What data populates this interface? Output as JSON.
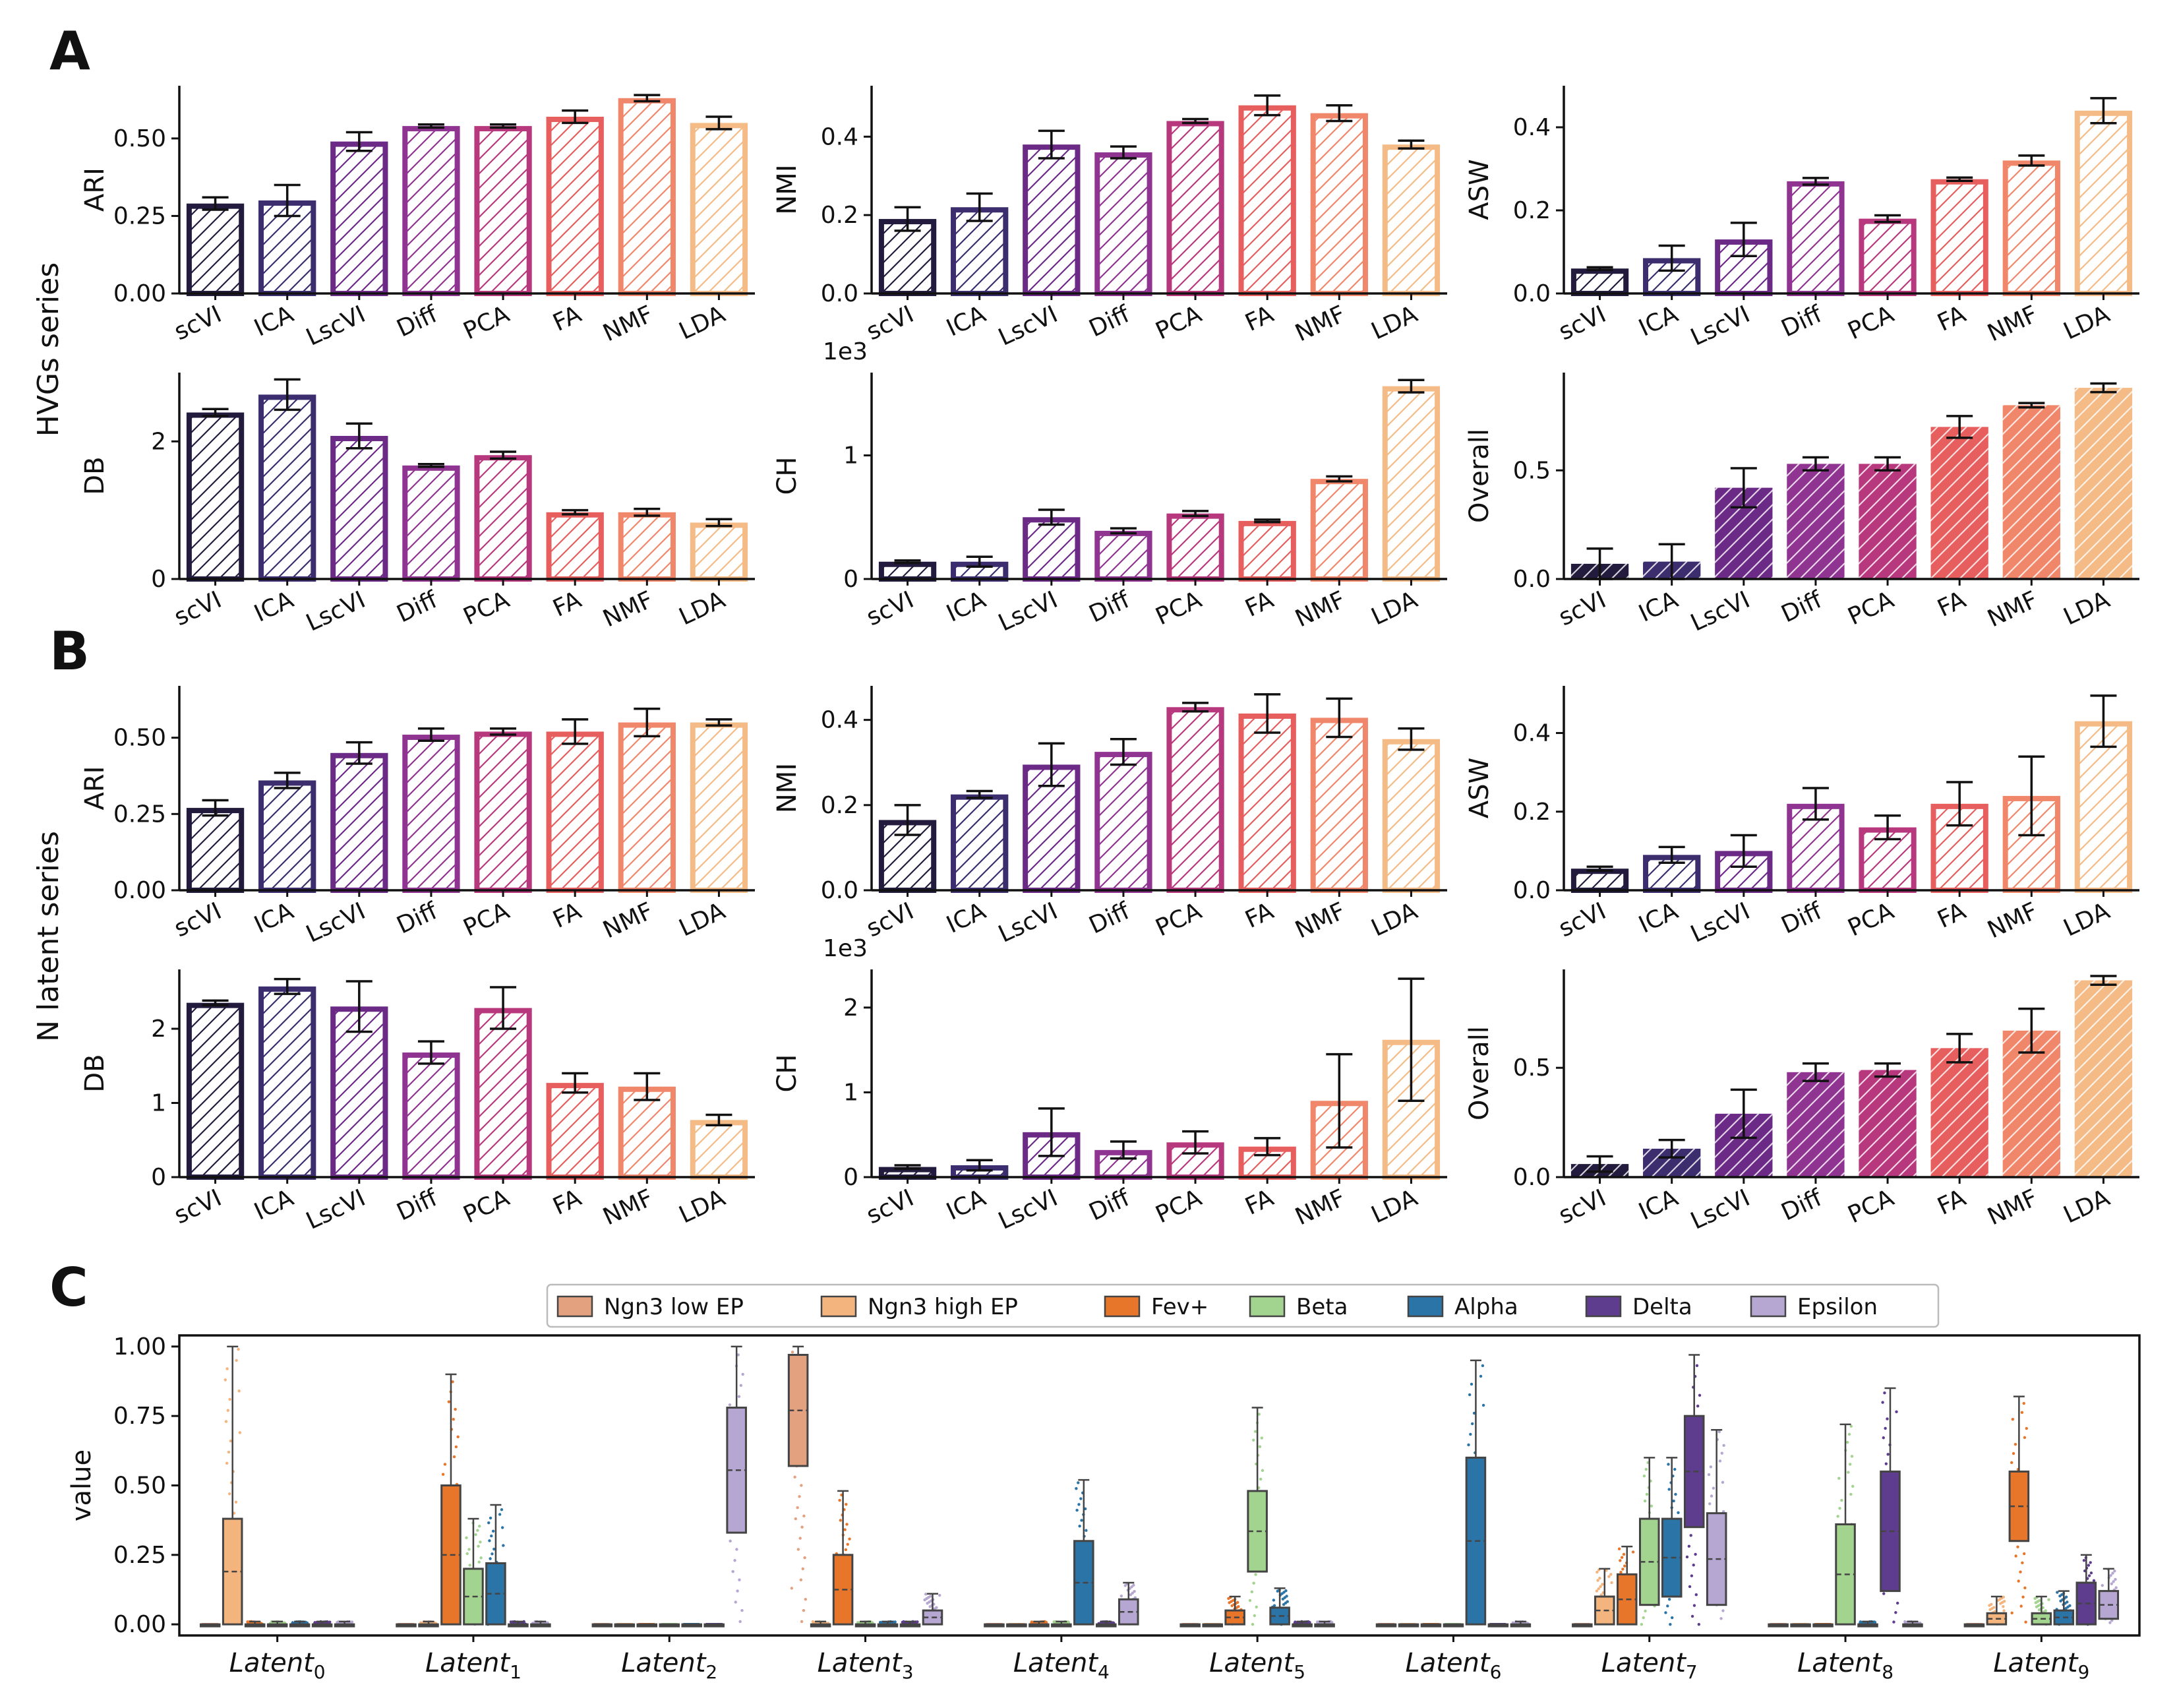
{
  "panels": {
    "A": "A",
    "B": "B",
    "C": "C"
  },
  "row_labels": {
    "A": "HVGs series",
    "B": "N latent series"
  },
  "methods": [
    "scVI",
    "ICA",
    "LscVI",
    "Diff",
    "PCA",
    "FA",
    "NMF",
    "LDA"
  ],
  "colors": [
    "#231b3d",
    "#3b2d6e",
    "#6c2a87",
    "#8f3491",
    "#b8387e",
    "#e75e5e",
    "#f0866a",
    "#f5bb86"
  ],
  "chart_data": [
    {
      "id": "A-ARI",
      "type": "bar",
      "title": "",
      "xlabel": "",
      "ylabel": "ARI",
      "categories": [
        "scVI",
        "ICA",
        "LscVI",
        "Diff",
        "PCA",
        "FA",
        "NMF",
        "LDA"
      ],
      "values": [
        0.29,
        0.3,
        0.49,
        0.54,
        0.54,
        0.57,
        0.63,
        0.55
      ],
      "errors": [
        0.02,
        0.05,
        0.03,
        0.005,
        0.005,
        0.02,
        0.01,
        0.02
      ],
      "ylim": [
        0,
        0.67
      ],
      "yticks": [
        "0.00",
        "0.25",
        "0.50"
      ],
      "ytick_values": [
        0,
        0.25,
        0.5
      ],
      "fill": "hatch"
    },
    {
      "id": "A-NMI",
      "type": "bar",
      "title": "",
      "xlabel": "",
      "ylabel": "NMI",
      "categories": [
        "scVI",
        "ICA",
        "LscVI",
        "Diff",
        "PCA",
        "FA",
        "NMF",
        "LDA"
      ],
      "values": [
        0.19,
        0.22,
        0.38,
        0.36,
        0.44,
        0.48,
        0.46,
        0.38
      ],
      "errors": [
        0.03,
        0.035,
        0.035,
        0.015,
        0.005,
        0.025,
        0.02,
        0.01
      ],
      "ylim": [
        0,
        0.53
      ],
      "yticks": [
        "0.0",
        "0.2",
        "0.4"
      ],
      "ytick_values": [
        0,
        0.2,
        0.4
      ],
      "fill": "hatch"
    },
    {
      "id": "A-ASW",
      "type": "bar",
      "title": "",
      "xlabel": "",
      "ylabel": "ASW",
      "categories": [
        "scVI",
        "ICA",
        "LscVI",
        "Diff",
        "PCA",
        "FA",
        "NMF",
        "LDA"
      ],
      "values": [
        0.06,
        0.085,
        0.13,
        0.27,
        0.18,
        0.275,
        0.32,
        0.44
      ],
      "errors": [
        0.003,
        0.03,
        0.04,
        0.008,
        0.008,
        0.004,
        0.012,
        0.03
      ],
      "ylim": [
        0,
        0.5
      ],
      "yticks": [
        "0.0",
        "0.2",
        "0.4"
      ],
      "ytick_values": [
        0,
        0.2,
        0.4
      ],
      "fill": "hatch"
    },
    {
      "id": "A-DB",
      "type": "bar",
      "title": "",
      "xlabel": "",
      "ylabel": "DB",
      "categories": [
        "scVI",
        "ICA",
        "LscVI",
        "Diff",
        "PCA",
        "FA",
        "NMF",
        "LDA"
      ],
      "values": [
        2.42,
        2.68,
        2.08,
        1.65,
        1.8,
        0.97,
        0.97,
        0.82
      ],
      "errors": [
        0.05,
        0.22,
        0.18,
        0.02,
        0.05,
        0.03,
        0.05,
        0.05
      ],
      "ylim": [
        0,
        3.0
      ],
      "yticks": [
        "0",
        "2"
      ],
      "ytick_values": [
        0,
        2
      ],
      "fill": "hatch"
    },
    {
      "id": "A-CH",
      "type": "bar",
      "title": "",
      "xlabel": "",
      "ylabel": "CH",
      "scale_label": "1e3",
      "categories": [
        "scVI",
        "ICA",
        "LscVI",
        "Diff",
        "PCA",
        "FA",
        "NMF",
        "LDA"
      ],
      "values": [
        0.14,
        0.14,
        0.5,
        0.39,
        0.53,
        0.47,
        0.81,
        1.56
      ],
      "errors": [
        0.01,
        0.04,
        0.06,
        0.02,
        0.02,
        0.01,
        0.02,
        0.05
      ],
      "ylim": [
        0,
        1.67
      ],
      "yticks": [
        "0",
        "1"
      ],
      "ytick_values": [
        0,
        1
      ],
      "fill": "hatch"
    },
    {
      "id": "A-Overall",
      "type": "bar",
      "title": "",
      "xlabel": "",
      "ylabel": "Overall",
      "categories": [
        "scVI",
        "ICA",
        "LscVI",
        "Diff",
        "PCA",
        "FA",
        "NMF",
        "LDA"
      ],
      "values": [
        0.07,
        0.08,
        0.42,
        0.53,
        0.53,
        0.7,
        0.8,
        0.88
      ],
      "errors": [
        0.07,
        0.08,
        0.09,
        0.03,
        0.03,
        0.05,
        0.01,
        0.02
      ],
      "ylim": [
        0,
        0.95
      ],
      "yticks": [
        "0.0",
        "0.5"
      ],
      "ytick_values": [
        0,
        0.5
      ],
      "fill": "solid"
    },
    {
      "id": "B-ARI",
      "type": "bar",
      "title": "",
      "xlabel": "",
      "ylabel": "ARI",
      "categories": [
        "scVI",
        "ICA",
        "LscVI",
        "Diff",
        "PCA",
        "FA",
        "NMF",
        "LDA"
      ],
      "values": [
        0.27,
        0.36,
        0.45,
        0.51,
        0.52,
        0.52,
        0.55,
        0.55
      ],
      "errors": [
        0.025,
        0.025,
        0.035,
        0.02,
        0.01,
        0.04,
        0.045,
        0.01
      ],
      "ylim": [
        0,
        0.67
      ],
      "yticks": [
        "0.00",
        "0.25",
        "0.50"
      ],
      "ytick_values": [
        0,
        0.25,
        0.5
      ],
      "fill": "hatch"
    },
    {
      "id": "B-NMI",
      "type": "bar",
      "title": "",
      "xlabel": "",
      "ylabel": "NMI",
      "categories": [
        "scVI",
        "ICA",
        "LscVI",
        "Diff",
        "PCA",
        "FA",
        "NMF",
        "LDA"
      ],
      "values": [
        0.165,
        0.225,
        0.295,
        0.325,
        0.43,
        0.415,
        0.405,
        0.355
      ],
      "errors": [
        0.035,
        0.008,
        0.05,
        0.03,
        0.01,
        0.045,
        0.045,
        0.025
      ],
      "ylim": [
        0,
        0.48
      ],
      "yticks": [
        "0.0",
        "0.2",
        "0.4"
      ],
      "ytick_values": [
        0,
        0.2,
        0.4
      ],
      "fill": "hatch"
    },
    {
      "id": "B-ASW",
      "type": "bar",
      "title": "",
      "xlabel": "",
      "ylabel": "ASW",
      "categories": [
        "scVI",
        "ICA",
        "LscVI",
        "Diff",
        "PCA",
        "FA",
        "NMF",
        "LDA"
      ],
      "values": [
        0.055,
        0.09,
        0.1,
        0.22,
        0.16,
        0.22,
        0.24,
        0.43
      ],
      "errors": [
        0.005,
        0.02,
        0.04,
        0.04,
        0.03,
        0.055,
        0.1,
        0.065
      ],
      "ylim": [
        0,
        0.52
      ],
      "yticks": [
        "0.0",
        "0.2",
        "0.4"
      ],
      "ytick_values": [
        0,
        0.2,
        0.4
      ],
      "fill": "hatch"
    },
    {
      "id": "B-DB",
      "type": "bar",
      "title": "",
      "xlabel": "",
      "ylabel": "DB",
      "categories": [
        "scVI",
        "ICA",
        "LscVI",
        "Diff",
        "PCA",
        "FA",
        "NMF",
        "LDA"
      ],
      "values": [
        2.35,
        2.57,
        2.3,
        1.68,
        2.28,
        1.27,
        1.22,
        0.77
      ],
      "errors": [
        0.03,
        0.1,
        0.34,
        0.15,
        0.28,
        0.13,
        0.18,
        0.07
      ],
      "ylim": [
        0,
        2.8
      ],
      "yticks": [
        "0",
        "1",
        "2"
      ],
      "ytick_values": [
        0,
        1,
        2
      ],
      "fill": "hatch"
    },
    {
      "id": "B-CH",
      "type": "bar",
      "title": "",
      "xlabel": "",
      "ylabel": "CH",
      "scale_label": "1e3",
      "categories": [
        "scVI",
        "ICA",
        "LscVI",
        "Diff",
        "PCA",
        "FA",
        "NMF",
        "LDA"
      ],
      "values": [
        0.12,
        0.14,
        0.53,
        0.32,
        0.41,
        0.36,
        0.9,
        1.62
      ],
      "errors": [
        0.02,
        0.06,
        0.28,
        0.1,
        0.13,
        0.1,
        0.55,
        0.72
      ],
      "ylim": [
        0,
        2.45
      ],
      "yticks": [
        "0",
        "1",
        "2"
      ],
      "ytick_values": [
        0,
        1,
        2
      ],
      "fill": "hatch"
    },
    {
      "id": "B-Overall",
      "type": "bar",
      "title": "",
      "xlabel": "",
      "ylabel": "Overall",
      "categories": [
        "scVI",
        "ICA",
        "LscVI",
        "Diff",
        "PCA",
        "FA",
        "NMF",
        "LDA"
      ],
      "values": [
        0.06,
        0.13,
        0.29,
        0.48,
        0.49,
        0.59,
        0.67,
        0.9
      ],
      "errors": [
        0.035,
        0.04,
        0.11,
        0.04,
        0.03,
        0.065,
        0.1,
        0.02
      ],
      "ylim": [
        0,
        0.95
      ],
      "yticks": [
        "0.0",
        "0.5"
      ],
      "ytick_values": [
        0,
        0.5
      ],
      "fill": "solid"
    },
    {
      "id": "C",
      "type": "box",
      "title": "",
      "xlabel": "",
      "ylabel": "value",
      "ylim": [
        -0.04,
        1.04
      ],
      "yticks": [
        "0.00",
        "0.25",
        "0.50",
        "0.75",
        "1.00"
      ],
      "ytick_values": [
        0,
        0.25,
        0.5,
        0.75,
        1.0
      ],
      "latent_prefix": "Latent",
      "categories": [
        "0",
        "1",
        "2",
        "3",
        "4",
        "5",
        "6",
        "7",
        "8",
        "9"
      ],
      "legend": [
        "Ngn3 low EP",
        "Ngn3 high EP",
        "Fev+",
        "Beta",
        "Alpha",
        "Delta",
        "Epsilon"
      ],
      "series_colors": [
        "#e4a180",
        "#f4b47e",
        "#e8762a",
        "#a3d48f",
        "#2b74a8",
        "#5e3c8e",
        "#b6a6d2"
      ],
      "boxes": [
        [
          [
            0,
            0,
            0
          ],
          [
            0,
            0.38,
            1.0
          ],
          [
            0,
            0,
            0.01
          ],
          [
            0,
            0,
            0.01
          ],
          [
            0,
            0,
            0.01
          ],
          [
            0,
            0,
            0.01
          ],
          [
            0,
            0,
            0.01
          ]
        ],
        [
          [
            0,
            0,
            0
          ],
          [
            0,
            0,
            0.01
          ],
          [
            0,
            0.5,
            0.9
          ],
          [
            0,
            0.2,
            0.38
          ],
          [
            0,
            0.22,
            0.43
          ],
          [
            0,
            0,
            0.01
          ],
          [
            0,
            0,
            0.01
          ]
        ],
        [
          [
            0,
            0,
            0
          ],
          [
            0,
            0,
            0
          ],
          [
            0,
            0,
            0
          ],
          [
            0,
            0,
            0
          ],
          [
            0,
            0,
            0
          ],
          [
            0,
            0,
            0
          ],
          [
            0.33,
            0.78,
            1.0
          ]
        ],
        [
          [
            0.57,
            0.97,
            1.0
          ],
          [
            0,
            0,
            0.01
          ],
          [
            0,
            0.25,
            0.48
          ],
          [
            0,
            0,
            0.01
          ],
          [
            0,
            0,
            0.01
          ],
          [
            0,
            0,
            0.01
          ],
          [
            0,
            0.05,
            0.11
          ]
        ],
        [
          [
            0,
            0,
            0
          ],
          [
            0,
            0,
            0
          ],
          [
            0,
            0,
            0.01
          ],
          [
            0,
            0,
            0.01
          ],
          [
            0,
            0.3,
            0.52
          ],
          [
            0,
            0,
            0.01
          ],
          [
            0,
            0.09,
            0.15
          ]
        ],
        [
          [
            0,
            0,
            0
          ],
          [
            0,
            0,
            0
          ],
          [
            0,
            0.05,
            0.1
          ],
          [
            0.19,
            0.48,
            0.78
          ],
          [
            0,
            0.06,
            0.13
          ],
          [
            0,
            0,
            0.01
          ],
          [
            0,
            0,
            0.01
          ]
        ],
        [
          [
            0,
            0,
            0
          ],
          [
            0,
            0,
            0
          ],
          [
            0,
            0,
            0
          ],
          [
            0,
            0,
            0
          ],
          [
            0,
            0.6,
            0.95
          ],
          [
            0,
            0,
            0
          ],
          [
            0,
            0,
            0.01
          ]
        ],
        [
          [
            0,
            0,
            0
          ],
          [
            0,
            0.1,
            0.2
          ],
          [
            0,
            0.18,
            0.28
          ],
          [
            0.07,
            0.38,
            0.6
          ],
          [
            0.1,
            0.38,
            0.6
          ],
          [
            0.35,
            0.75,
            0.97
          ],
          [
            0.07,
            0.4,
            0.7
          ]
        ],
        [
          [
            0,
            0,
            0
          ],
          [
            0,
            0,
            0
          ],
          [
            0,
            0,
            0
          ],
          [
            0,
            0.36,
            0.72
          ],
          [
            0,
            0,
            0.01
          ],
          [
            0.12,
            0.55,
            0.85
          ],
          [
            0,
            0,
            0.01
          ]
        ],
        [
          [
            0,
            0,
            0
          ],
          [
            0,
            0.04,
            0.1
          ],
          [
            0.3,
            0.55,
            0.82
          ],
          [
            0,
            0.04,
            0.1
          ],
          [
            0,
            0.05,
            0.12
          ],
          [
            0,
            0.15,
            0.25
          ],
          [
            0.02,
            0.12,
            0.2
          ]
        ]
      ]
    }
  ]
}
